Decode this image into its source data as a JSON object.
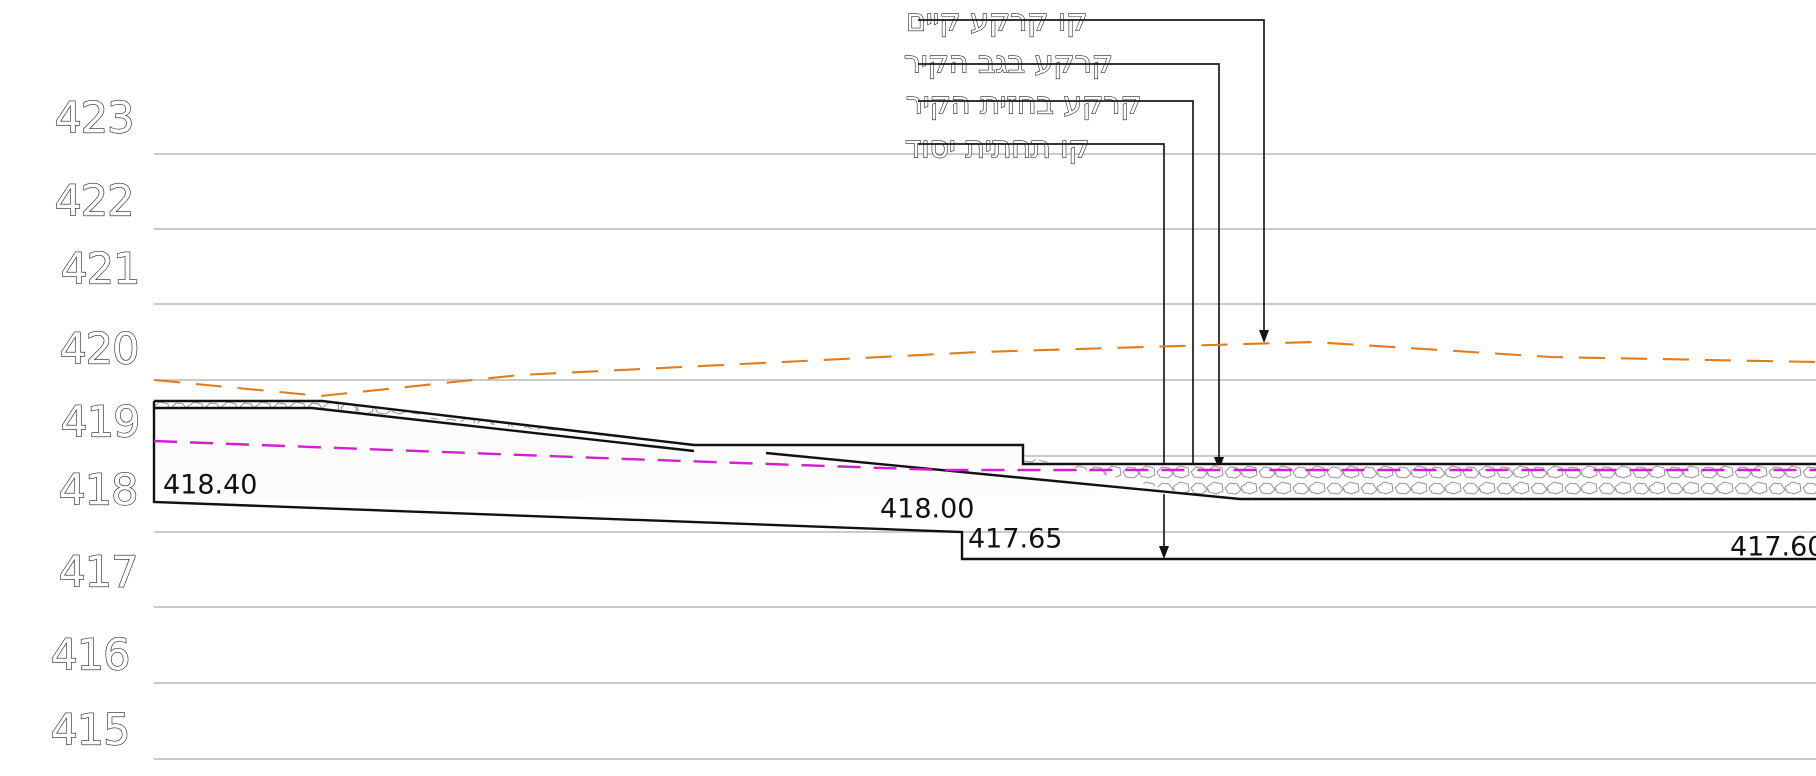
{
  "elevation_labels": [
    "423",
    "422",
    "421",
    "420",
    "419",
    "418",
    "417",
    "416",
    "415"
  ],
  "legend": {
    "existing_ground": "קו קרקע קיים",
    "ground_behind_wall": "קרקע בגב הקיר",
    "ground_in_front_of_wall": "קרקע בחזית הקיר",
    "foundation_bottom": "קו תחתית יסוד"
  },
  "level_labels": {
    "left_top": "418.40",
    "middle_top": "418.00",
    "middle_step": "417.65",
    "right_step": "417.60"
  },
  "colors": {
    "grid": "#b8b8b8",
    "existing_ground": "#e57b16",
    "foundation_line": "#d11fd1",
    "outline": "#111111"
  }
}
